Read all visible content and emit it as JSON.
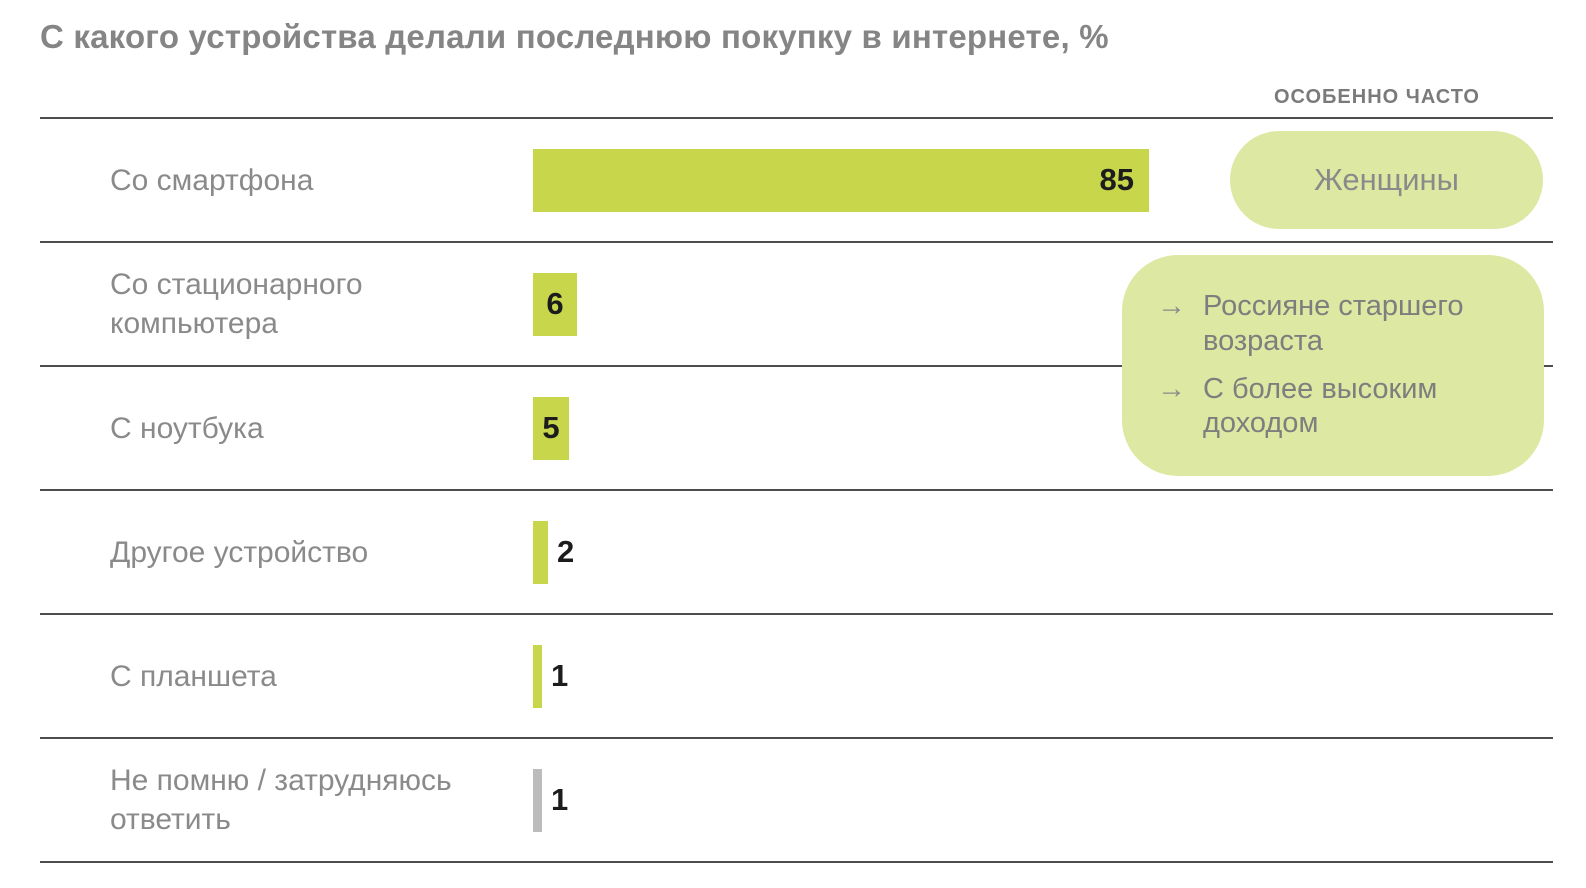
{
  "title": "С какого устройства делали последнюю покупку в интернете, %",
  "chart_data": {
    "type": "bar",
    "orientation": "horizontal",
    "title": "С какого устройства делали последнюю покупку в интернете, %",
    "unit": "%",
    "xlim": [
      0,
      85
    ],
    "grid": false,
    "legend": "none",
    "categories": [
      "Со смартфона",
      "Со стационарного компьютера",
      "С ноутбука",
      "Другое устройство",
      "С планшета",
      "Не помню / затрудняюсь ответить"
    ],
    "values": [
      85,
      6,
      5,
      2,
      1,
      1
    ],
    "bar_styles": [
      "accent",
      "accent",
      "accent",
      "accent",
      "accent",
      "muted"
    ]
  },
  "annotations": {
    "header": "ОСОБЕННО ЧАСТО",
    "smartphone_pill": {
      "label": "Женщины"
    },
    "callout": {
      "bullet_icon": "→",
      "items": [
        "Россияне старшего возраста",
        "С более высоким доходом"
      ]
    }
  },
  "colors": {
    "accent_bar": "#c7d64a",
    "annotation_background": "#dde8a2",
    "muted_bar": "#bcbcbc",
    "label_text": "#8a8a8a",
    "value_text": "#1c1c1c",
    "title_text": "#858585",
    "divider": "#4d4d4d",
    "background": "#ffffff"
  }
}
